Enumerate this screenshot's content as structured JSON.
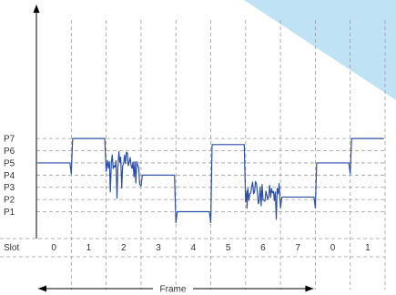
{
  "chart_data": {
    "type": "line",
    "title": "",
    "xlabel": "Frame",
    "ylabel": "",
    "slot_axis_title": "Slot",
    "slot_labels": [
      "0",
      "1",
      "2",
      "3",
      "4",
      "5",
      "6",
      "7",
      "0",
      "1"
    ],
    "y_tick_labels": [
      "P7",
      "P6",
      "P5",
      "P4",
      "P3",
      "P2",
      "P1"
    ],
    "y_levels": [
      7,
      6,
      5,
      4,
      3,
      2,
      1
    ],
    "ylim": [
      -1.2,
      7.5
    ],
    "xlim": [
      0,
      10.2
    ],
    "series": [
      {
        "slots": [
          {
            "slot": "0",
            "level": 5.0,
            "noisy": false
          },
          {
            "slot": "1",
            "level": 7.0,
            "noisy": false
          },
          {
            "slot": "2",
            "level": 5.2,
            "noisy": true
          },
          {
            "slot": "3",
            "level": 4.0,
            "noisy": false
          },
          {
            "slot": "4",
            "level": 1.0,
            "noisy": false
          },
          {
            "slot": "5",
            "level": 6.5,
            "noisy": false
          },
          {
            "slot": "6",
            "level": 2.7,
            "noisy": true
          },
          {
            "slot": "7",
            "level": 2.2,
            "noisy": false
          },
          {
            "slot": "0",
            "level": 5.0,
            "noisy": false
          },
          {
            "slot": "1",
            "level": 7.0,
            "noisy": false
          }
        ]
      }
    ],
    "grid": true,
    "colors": {
      "trace": "#2b4fa8",
      "corner_decoration": "#bfe3f5"
    }
  }
}
